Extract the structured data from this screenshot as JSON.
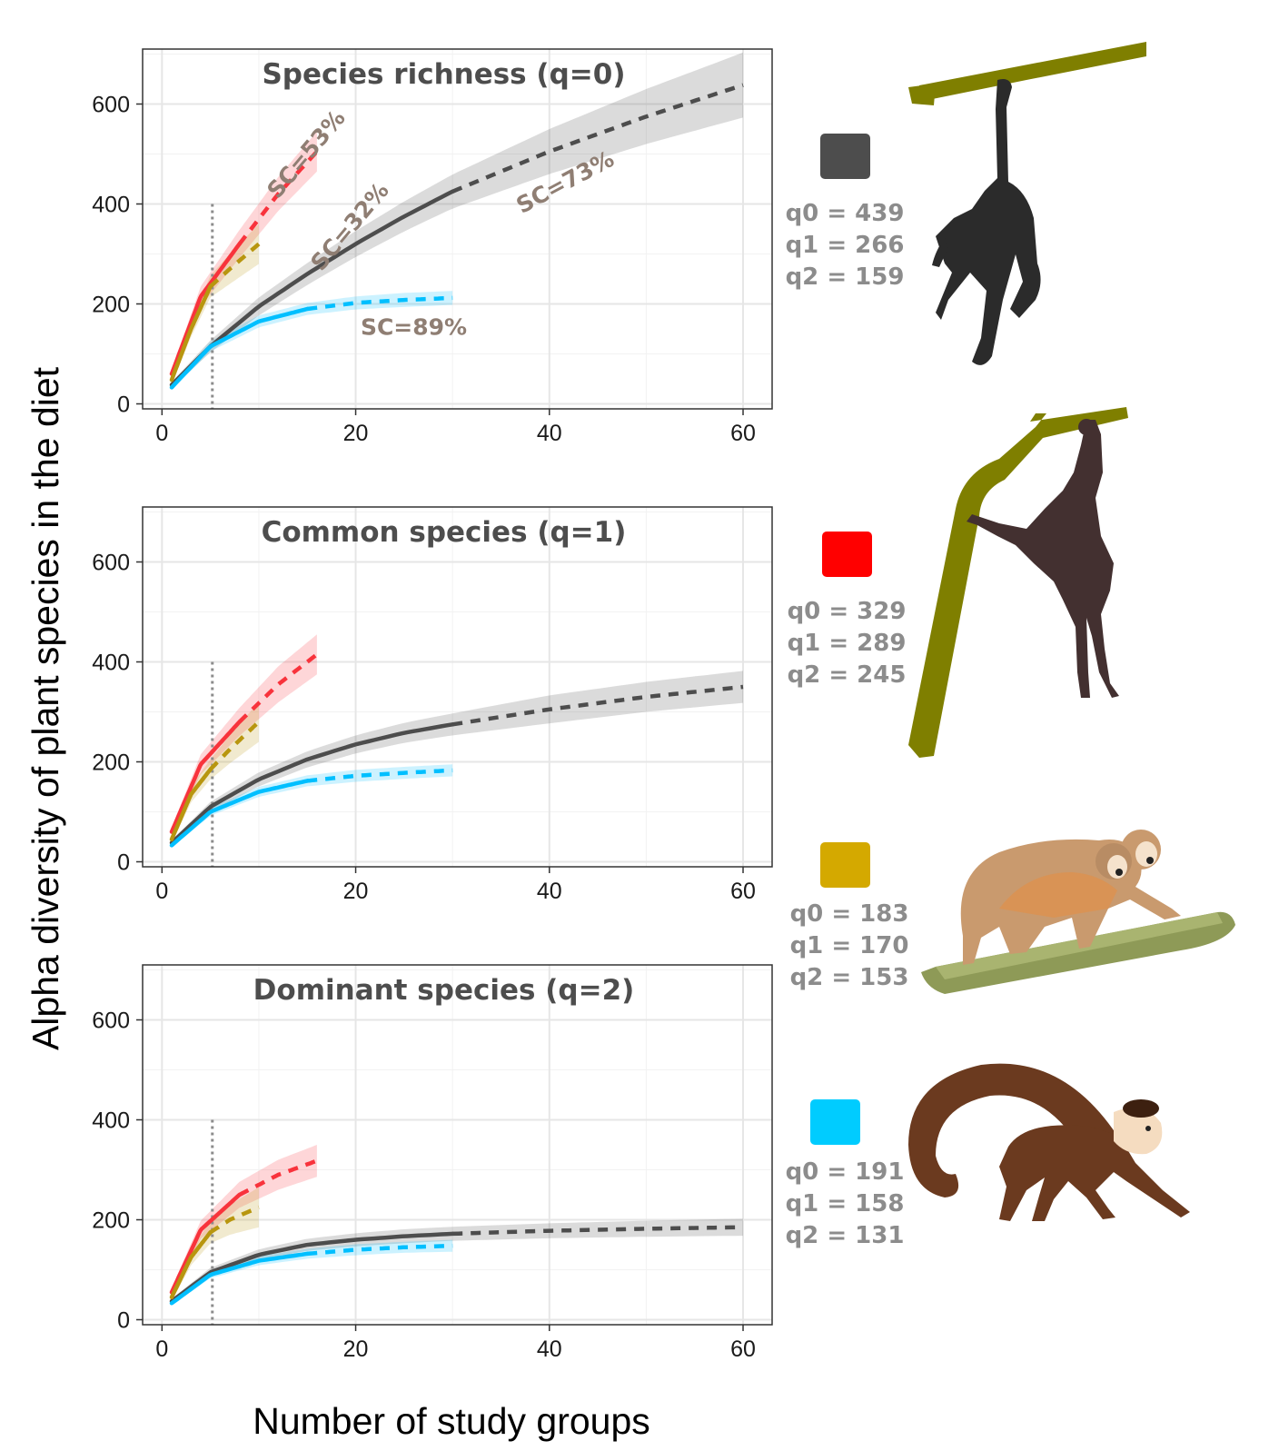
{
  "chart_data": {
    "type": "line",
    "xlabel": "Number of study groups",
    "ylabel": "Alpha diversity of plant species in the diet",
    "xlim": [
      -2,
      63
    ],
    "ylim": [
      -10,
      710
    ],
    "xticks": [
      "0",
      "20",
      "40",
      "60"
    ],
    "yticks": [
      "0",
      "200",
      "400",
      "600"
    ],
    "grid": true,
    "reference_x": 5.2,
    "reference_ymax": 400,
    "series_colors": [
      "#4d4d4d",
      "#f8333c",
      "#b8960f",
      "#00bfff"
    ],
    "panels": [
      {
        "title": "Species richness (q=0)",
        "annotations": [
          {
            "text": "SC=53%",
            "x": 15.5,
            "y": 490,
            "rotate": -50
          },
          {
            "text": "SC=32%",
            "x": 20,
            "y": 345,
            "rotate": -50
          },
          {
            "text": "SC=73%",
            "x": 42,
            "y": 430,
            "rotate": -28
          },
          {
            "text": "SC=89%",
            "x": 26,
            "y": 138,
            "rotate": 0
          }
        ],
        "series": [
          {
            "color": "#4d4d4d",
            "x_obs": 30,
            "x_end": 60,
            "x": [
              1,
              5,
              10,
              15,
              20,
              25,
              30,
              40,
              50,
              60
            ],
            "y": [
              38,
              115,
              195,
              260,
              320,
              375,
              425,
              505,
              575,
              638
            ],
            "band": [
              6,
              12,
              18,
              22,
              26,
              30,
              34,
              45,
              55,
              65
            ]
          },
          {
            "color": "#f8333c",
            "x_obs": 8,
            "x_end": 16,
            "x": [
              1,
              4,
              8,
              12,
              16
            ],
            "y": [
              60,
              215,
              320,
              420,
              505
            ],
            "band": [
              8,
              20,
              28,
              34,
              40
            ]
          },
          {
            "color": "#b8960f",
            "x_obs": 5,
            "x_end": 10,
            "x": [
              1,
              3,
              5,
              7,
              10
            ],
            "y": [
              48,
              150,
              235,
              270,
              320
            ],
            "band": [
              8,
              16,
              22,
              30,
              40
            ]
          },
          {
            "color": "#00bfff",
            "x_obs": 15,
            "x_end": 30,
            "x": [
              1,
              5,
              10,
              15,
              20,
              25,
              30
            ],
            "y": [
              33,
              115,
              165,
              190,
              202,
              208,
              212
            ],
            "band": [
              5,
              10,
              12,
              12,
              13,
              14,
              14
            ]
          }
        ]
      },
      {
        "title": "Common species (q=1)",
        "annotations": [],
        "series": [
          {
            "color": "#4d4d4d",
            "x_obs": 30,
            "x_end": 60,
            "x": [
              1,
              5,
              10,
              15,
              20,
              25,
              30,
              40,
              50,
              60
            ],
            "y": [
              38,
              110,
              165,
              205,
              235,
              258,
              275,
              305,
              330,
              350
            ],
            "band": [
              5,
              10,
              14,
              16,
              18,
              20,
              22,
              28,
              30,
              32
            ]
          },
          {
            "color": "#f8333c",
            "x_obs": 8,
            "x_end": 16,
            "x": [
              1,
              4,
              8,
              12,
              16
            ],
            "y": [
              60,
              195,
              280,
              355,
              415
            ],
            "band": [
              8,
              20,
              28,
              36,
              40
            ]
          },
          {
            "color": "#b8960f",
            "x_obs": 5,
            "x_end": 10,
            "x": [
              1,
              3,
              5,
              7,
              10
            ],
            "y": [
              45,
              135,
              185,
              225,
              280
            ],
            "band": [
              8,
              16,
              20,
              28,
              40
            ]
          },
          {
            "color": "#00bfff",
            "x_obs": 15,
            "x_end": 30,
            "x": [
              1,
              5,
              10,
              15,
              20,
              25,
              30
            ],
            "y": [
              33,
              100,
              140,
              162,
              172,
              178,
              183
            ],
            "band": [
              4,
              8,
              10,
              11,
              12,
              12,
              12
            ]
          }
        ]
      },
      {
        "title": "Dominant species (q=2)",
        "annotations": [],
        "series": [
          {
            "color": "#4d4d4d",
            "x_obs": 30,
            "x_end": 60,
            "x": [
              1,
              5,
              10,
              15,
              20,
              25,
              30,
              40,
              50,
              60
            ],
            "y": [
              37,
              95,
              130,
              150,
              160,
              167,
              172,
              178,
              182,
              185
            ],
            "band": [
              5,
              9,
              11,
              12,
              13,
              14,
              14,
              15,
              16,
              17
            ]
          },
          {
            "color": "#f8333c",
            "x_obs": 8,
            "x_end": 16,
            "x": [
              1,
              4,
              8,
              12,
              16
            ],
            "y": [
              55,
              180,
              250,
              290,
              318
            ],
            "band": [
              8,
              18,
              26,
              30,
              32
            ]
          },
          {
            "color": "#b8960f",
            "x_obs": 5,
            "x_end": 10,
            "x": [
              1,
              3,
              5,
              7,
              10
            ],
            "y": [
              45,
              125,
              175,
              200,
              225
            ],
            "band": [
              8,
              16,
              22,
              30,
              40
            ]
          },
          {
            "color": "#00bfff",
            "x_obs": 15,
            "x_end": 30,
            "x": [
              1,
              5,
              10,
              15,
              20,
              25,
              30
            ],
            "y": [
              33,
              90,
              118,
              132,
              140,
              145,
              148
            ],
            "band": [
              4,
              7,
              9,
              10,
              11,
              11,
              12
            ]
          }
        ]
      }
    ]
  },
  "legend": [
    {
      "color": "#4d4d4d",
      "animal": "spider-monkey-hanging-one-arm",
      "stats": [
        "q0 = 439",
        "q1 = 266",
        "q2 = 159"
      ]
    },
    {
      "color": "#ff0000",
      "animal": "spider-monkey-hanging-two-arms",
      "stats": [
        "q0 = 329",
        "q1 = 289",
        "q2 = 245"
      ]
    },
    {
      "color": "#d4a900",
      "animal": "squirrel-monkeys-on-log",
      "stats": [
        "q0 = 183",
        "q1 = 170",
        "q2 = 153"
      ]
    },
    {
      "color": "#00ccff",
      "animal": "capuchin-monkey-walking",
      "stats": [
        "q0 = 191",
        "q1 = 158",
        "q2 = 131"
      ]
    }
  ]
}
